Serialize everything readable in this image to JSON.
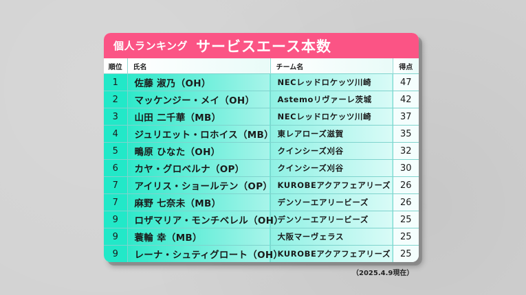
{
  "title": {
    "small": "個人ランキング",
    "large": "サービスエース本数"
  },
  "colors": {
    "title_bar": "#fb5485",
    "rank_col": "#22e8c8",
    "grid_line": "#7fd3cd",
    "background": "#d2d2d2"
  },
  "table": {
    "headers": {
      "rank": "順位",
      "name": "氏名",
      "team": "チーム名",
      "points": "得点"
    },
    "rows": [
      {
        "rank": "1",
        "name": "佐藤 淑乃（OH）",
        "team": "NECレッドロケッツ川崎",
        "points": "47"
      },
      {
        "rank": "2",
        "name": "マッケンジー・メイ（OH）",
        "team": "Astemoリヴァーレ茨城",
        "points": "42"
      },
      {
        "rank": "3",
        "name": "山田 二千華（MB）",
        "team": "NECレッドロケッツ川崎",
        "points": "37"
      },
      {
        "rank": "4",
        "name": "ジュリエット・ロホイス（MB）",
        "team": "東レアローズ滋賀",
        "points": "35"
      },
      {
        "rank": "5",
        "name": "鴫原 ひなた（OH）",
        "team": "クインシーズ刈谷",
        "points": "32"
      },
      {
        "rank": "6",
        "name": "カヤ・グロベルナ（OP）",
        "team": "クインシーズ刈谷",
        "points": "30"
      },
      {
        "rank": "7",
        "name": "アイリス・ショールテン（OP）",
        "team": "KUROBEアクアフェアリーズ",
        "points": "26"
      },
      {
        "rank": "7",
        "name": "麻野 七奈未（MB）",
        "team": "デンソーエアリービーズ",
        "points": "26"
      },
      {
        "rank": "9",
        "name": "ロザマリア・モンチベレル（OH）",
        "team": "デンソーエアリービーズ",
        "points": "25"
      },
      {
        "rank": "9",
        "name": "蓑輪 幸（MB）",
        "team": "大阪マーヴェラス",
        "points": "25"
      },
      {
        "rank": "9",
        "name": "レーナ・シュティグロート（OH）",
        "team": "KUROBEアクアフェアリーズ",
        "points": "25"
      }
    ]
  },
  "footnote": "（2025.4.9現在）"
}
